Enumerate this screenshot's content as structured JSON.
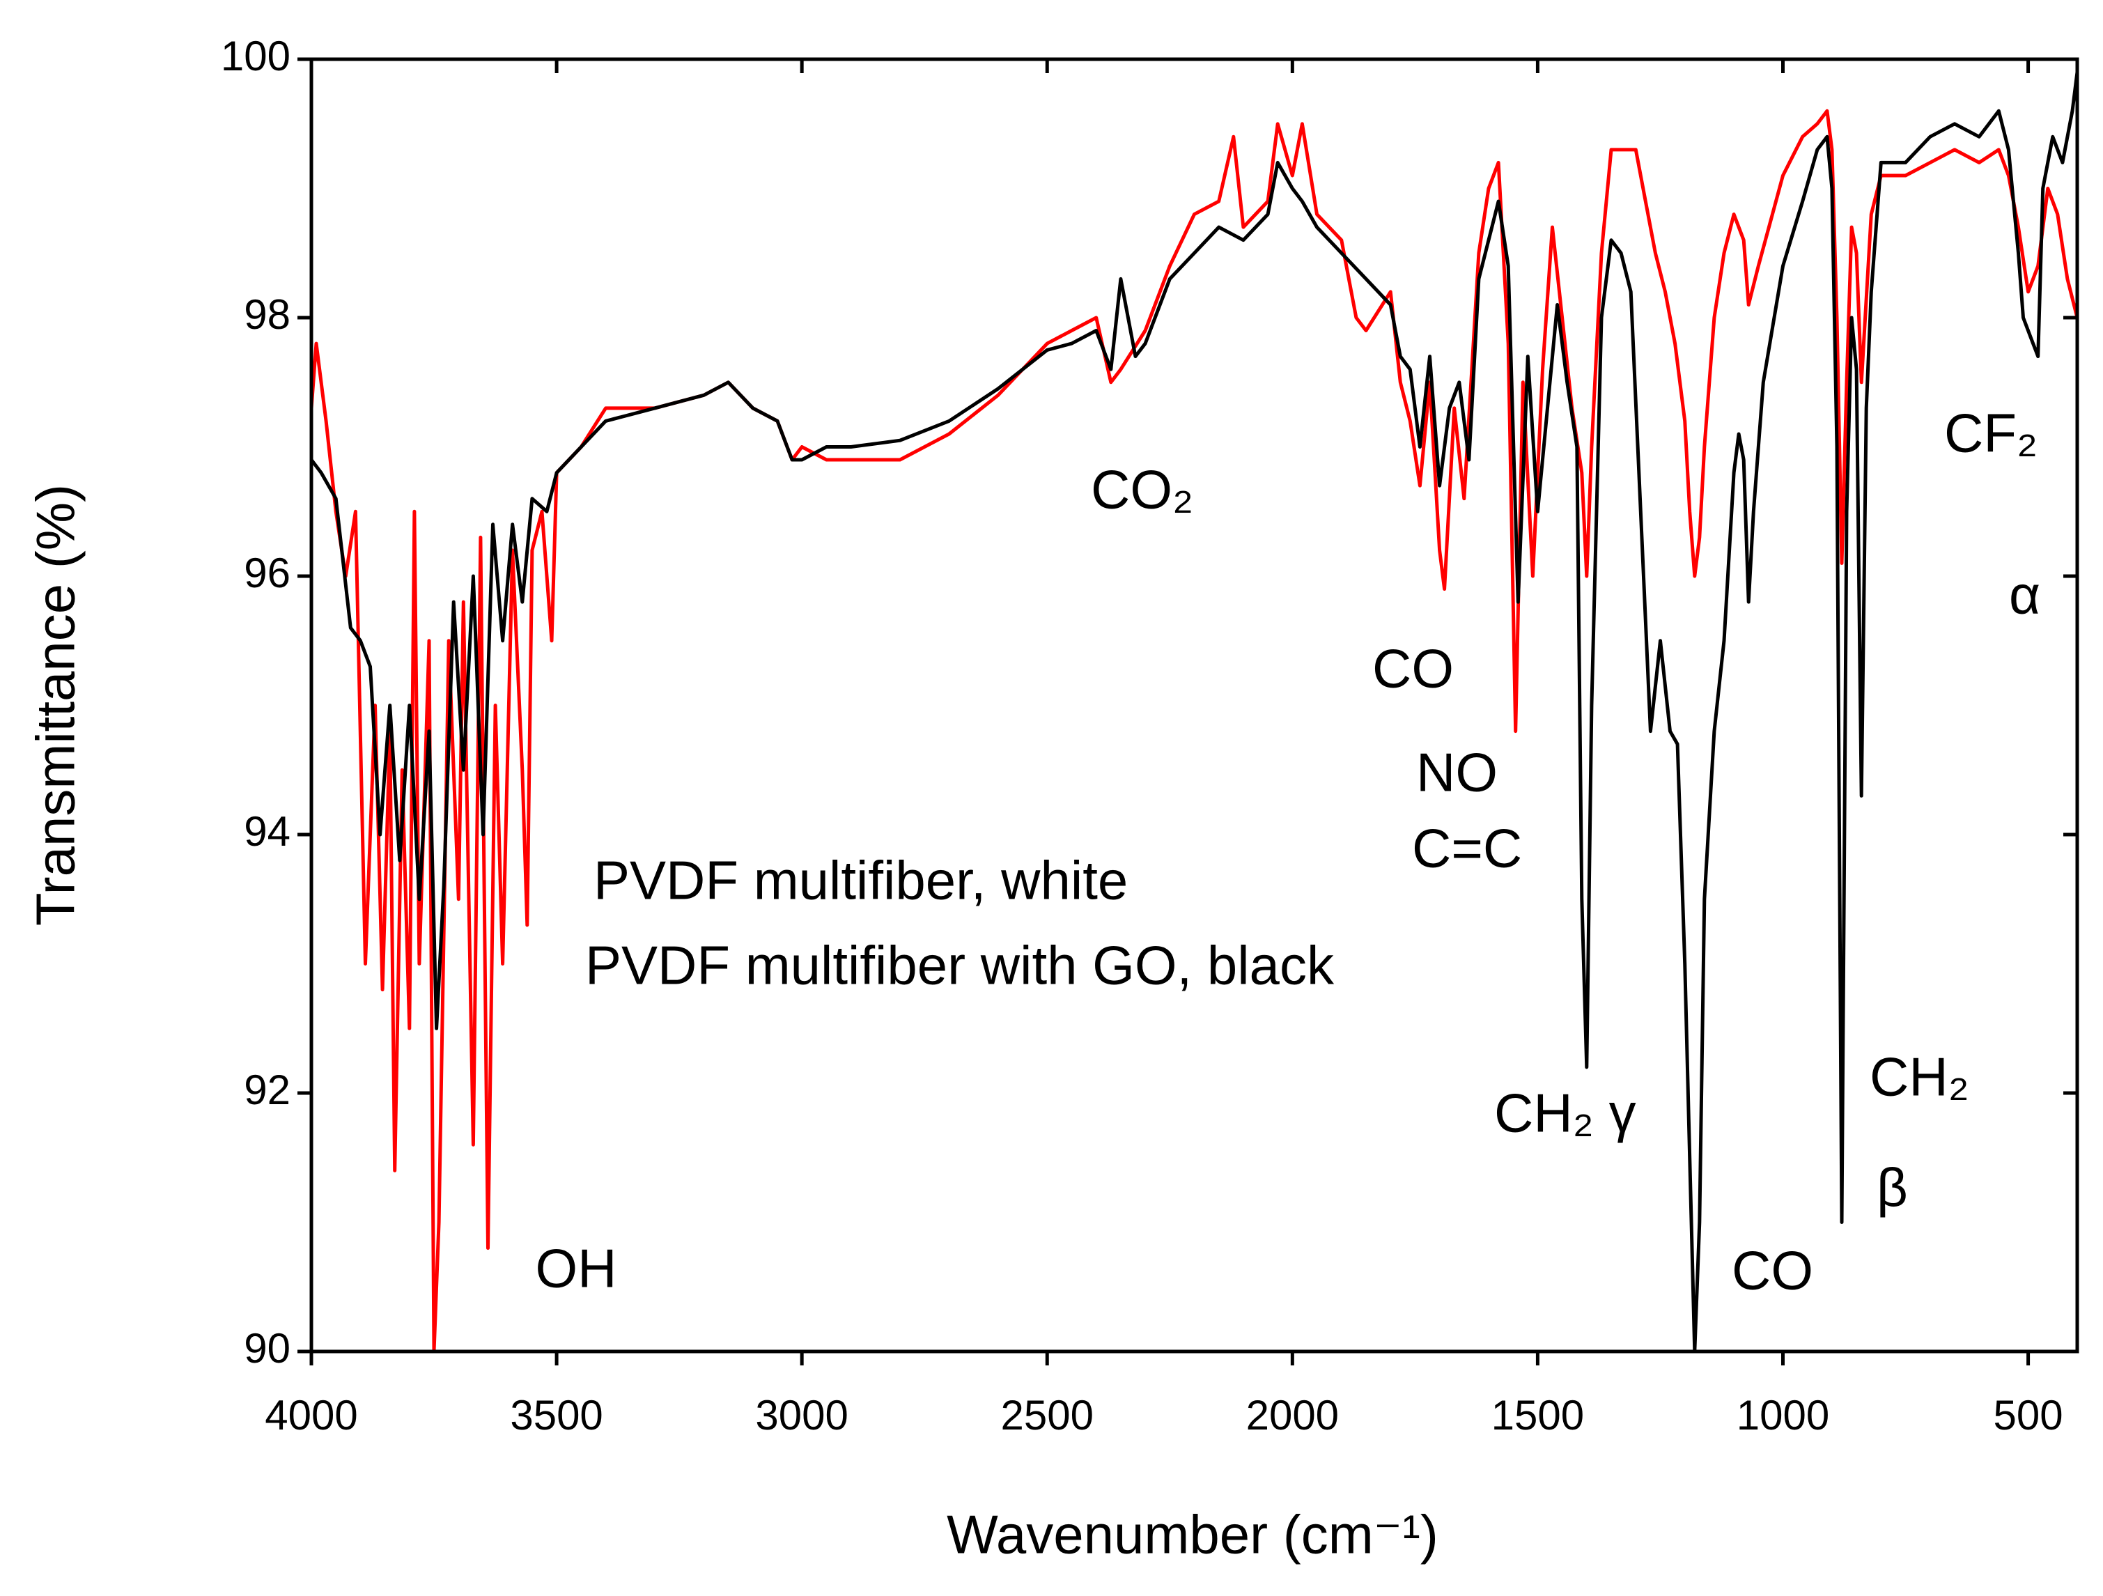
{
  "chart_data": {
    "type": "line",
    "xlabel": "Wavenumber (cm⁻¹)",
    "ylabel": "Transmittance (%)",
    "xlim": [
      4000,
      400
    ],
    "ylim": [
      90,
      100
    ],
    "xticks": [
      4000,
      3500,
      3000,
      2500,
      2000,
      1500,
      1000,
      500
    ],
    "yticks": [
      90,
      92,
      94,
      96,
      98,
      100
    ],
    "annotations": [
      "OH",
      "CO₂",
      "CO",
      "NO",
      "C=C",
      "CH₂ γ",
      "CH₂",
      "β",
      "CO",
      "CF₂",
      "α"
    ],
    "series": [
      {
        "name": "PVDF multifiber, white",
        "color": "#ff0000",
        "x": [
          4000,
          3990,
          3970,
          3950,
          3930,
          3910,
          3890,
          3870,
          3855,
          3840,
          3830,
          3815,
          3800,
          3790,
          3780,
          3760,
          3750,
          3740,
          3720,
          3700,
          3690,
          3670,
          3655,
          3640,
          3625,
          3610,
          3590,
          3570,
          3560,
          3550,
          3530,
          3510,
          3500,
          3450,
          3400,
          3300,
          3200,
          3150,
          3100,
          3050,
          3020,
          3000,
          2950,
          2900,
          2800,
          2700,
          2600,
          2500,
          2450,
          2400,
          2370,
          2350,
          2300,
          2250,
          2200,
          2150,
          2120,
          2100,
          2050,
          2030,
          2000,
          1980,
          1950,
          1900,
          1870,
          1850,
          1800,
          1780,
          1760,
          1740,
          1720,
          1700,
          1690,
          1670,
          1650,
          1620,
          1600,
          1580,
          1560,
          1545,
          1530,
          1510,
          1490,
          1470,
          1450,
          1430,
          1410,
          1400,
          1390,
          1370,
          1350,
          1330,
          1300,
          1280,
          1260,
          1240,
          1220,
          1200,
          1190,
          1180,
          1170,
          1160,
          1140,
          1120,
          1100,
          1080,
          1070,
          1050,
          1000,
          960,
          930,
          910,
          900,
          890,
          880,
          870,
          860,
          850,
          840,
          820,
          800,
          750,
          700,
          650,
          600,
          560,
          540,
          520,
          500,
          480,
          460,
          440,
          420,
          400
        ],
        "values": [
          97.3,
          97.8,
          97.2,
          96.5,
          96.0,
          96.5,
          93.0,
          95.0,
          92.8,
          94.8,
          91.4,
          94.5,
          92.5,
          96.5,
          93.0,
          95.5,
          90.0,
          91.0,
          95.5,
          93.5,
          95.8,
          91.6,
          96.3,
          90.8,
          95.0,
          93.0,
          96.2,
          94.5,
          93.3,
          96.2,
          96.5,
          95.5,
          96.8,
          97.0,
          97.3,
          97.3,
          97.4,
          97.5,
          97.3,
          97.2,
          96.9,
          97.0,
          96.9,
          96.9,
          96.9,
          97.1,
          97.4,
          97.8,
          97.9,
          98.0,
          97.5,
          97.6,
          97.9,
          98.4,
          98.8,
          98.9,
          99.4,
          98.7,
          98.9,
          99.5,
          99.1,
          99.5,
          98.8,
          98.6,
          98.0,
          97.9,
          98.2,
          97.5,
          97.2,
          96.7,
          97.5,
          96.2,
          95.9,
          97.3,
          96.6,
          98.5,
          99.0,
          99.2,
          97.8,
          94.8,
          97.5,
          96.0,
          97.6,
          98.7,
          98.0,
          97.3,
          96.8,
          96.0,
          97.0,
          98.5,
          99.3,
          99.3,
          99.3,
          98.9,
          98.5,
          98.2,
          97.8,
          97.2,
          96.5,
          96.0,
          96.3,
          97.0,
          98.0,
          98.5,
          98.8,
          98.6,
          98.1,
          98.4,
          99.1,
          99.4,
          99.5,
          99.6,
          99.3,
          98.0,
          96.1,
          97.5,
          98.7,
          98.5,
          97.5,
          98.8,
          99.1,
          99.1,
          99.2,
          99.3,
          99.2,
          99.3,
          99.1,
          98.7,
          98.2,
          98.4,
          99.0,
          98.8,
          98.3,
          98.0
        ]
      },
      {
        "name": "PVDF multifiber with GO, black",
        "color": "#000000",
        "x": [
          4000,
          3980,
          3950,
          3920,
          3900,
          3880,
          3860,
          3840,
          3820,
          3800,
          3780,
          3760,
          3745,
          3730,
          3710,
          3690,
          3670,
          3650,
          3630,
          3610,
          3590,
          3570,
          3550,
          3520,
          3500,
          3450,
          3400,
          3300,
          3200,
          3150,
          3100,
          3050,
          3020,
          3000,
          2950,
          2900,
          2800,
          2700,
          2600,
          2500,
          2450,
          2400,
          2370,
          2350,
          2320,
          2300,
          2250,
          2200,
          2150,
          2100,
          2050,
          2030,
          2000,
          1980,
          1950,
          1900,
          1850,
          1800,
          1780,
          1760,
          1740,
          1720,
          1700,
          1680,
          1660,
          1640,
          1620,
          1600,
          1580,
          1560,
          1540,
          1520,
          1500,
          1480,
          1460,
          1440,
          1420,
          1410,
          1400,
          1390,
          1370,
          1350,
          1330,
          1310,
          1290,
          1270,
          1250,
          1230,
          1215,
          1200,
          1190,
          1180,
          1170,
          1160,
          1140,
          1120,
          1100,
          1090,
          1080,
          1070,
          1060,
          1040,
          1000,
          960,
          930,
          910,
          900,
          890,
          880,
          870,
          860,
          850,
          840,
          830,
          820,
          800,
          750,
          700,
          650,
          600,
          560,
          540,
          520,
          510,
          490,
          480,
          470,
          450,
          430,
          410,
          400
        ],
        "values": [
          96.9,
          96.8,
          96.6,
          95.6,
          95.5,
          95.3,
          94.0,
          95.0,
          93.8,
          95.0,
          93.5,
          94.8,
          92.5,
          93.6,
          95.8,
          94.5,
          96.0,
          94.0,
          96.4,
          95.5,
          96.4,
          95.8,
          96.6,
          96.5,
          96.8,
          97.0,
          97.2,
          97.3,
          97.4,
          97.5,
          97.3,
          97.2,
          96.9,
          96.9,
          97.0,
          97.0,
          97.05,
          97.2,
          97.45,
          97.75,
          97.8,
          97.9,
          97.6,
          98.3,
          97.7,
          97.8,
          98.3,
          98.5,
          98.7,
          98.6,
          98.8,
          99.2,
          99.0,
          98.9,
          98.7,
          98.5,
          98.3,
          98.1,
          97.7,
          97.6,
          97.0,
          97.7,
          96.7,
          97.3,
          97.5,
          96.9,
          98.3,
          98.6,
          98.9,
          98.4,
          95.8,
          97.7,
          96.5,
          97.3,
          98.1,
          97.5,
          97.0,
          93.5,
          92.2,
          95.0,
          98.0,
          98.6,
          98.5,
          98.2,
          96.5,
          94.8,
          95.5,
          94.8,
          94.7,
          93.0,
          91.5,
          90.0,
          91.0,
          93.5,
          94.8,
          95.5,
          96.8,
          97.1,
          96.9,
          95.8,
          96.5,
          97.5,
          98.4,
          98.9,
          99.3,
          99.4,
          99.0,
          97.0,
          91.0,
          96.5,
          98.0,
          97.6,
          94.3,
          97.3,
          98.2,
          99.2,
          99.2,
          99.4,
          99.5,
          99.4,
          99.6,
          99.3,
          98.5,
          98.0,
          97.8,
          97.7,
          99.0,
          99.4,
          99.2,
          99.6,
          99.9
        ]
      }
    ]
  }
}
